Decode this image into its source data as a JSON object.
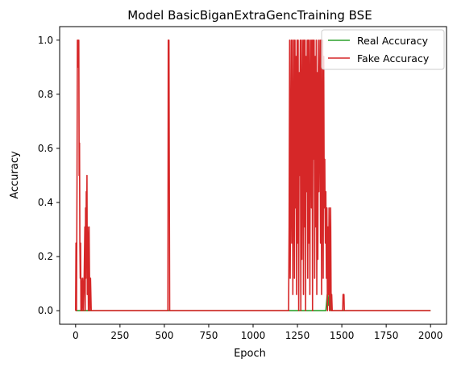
{
  "chart_data": {
    "type": "line",
    "title": "Model BasicBiganExtraGencTraining BSE",
    "xlabel": "Epoch",
    "ylabel": "Accuracy",
    "xlim": [
      -90,
      2090
    ],
    "ylim": [
      -0.05,
      1.05
    ],
    "xticks": [
      0,
      250,
      500,
      750,
      1000,
      1250,
      1500,
      1750,
      2000
    ],
    "yticks": [
      0.0,
      0.2,
      0.4,
      0.6,
      0.8,
      1.0
    ],
    "xtick_labels": [
      "0",
      "250",
      "500",
      "750",
      "1000",
      "1250",
      "1500",
      "1750",
      "2000"
    ],
    "ytick_labels": [
      "0.0",
      "0.2",
      "0.4",
      "0.6",
      "0.8",
      "1.0"
    ],
    "legend_position": "top-right",
    "grid": false,
    "series": [
      {
        "name": "Real Accuracy",
        "color": "#2ca02c",
        "points": [
          [
            0,
            0
          ],
          [
            1410,
            0
          ],
          [
            1418,
            0.06
          ],
          [
            1424,
            0.02
          ],
          [
            1428,
            0.06
          ],
          [
            1432,
            0
          ],
          [
            1436,
            0.06
          ],
          [
            1440,
            0
          ],
          [
            2000,
            0
          ]
        ]
      },
      {
        "name": "Fake Accuracy",
        "color": "#d62728",
        "points": [
          [
            0,
            0
          ],
          [
            2,
            0.25
          ],
          [
            5,
            0
          ],
          [
            8,
            0.5
          ],
          [
            10,
            1.0
          ],
          [
            12,
            0.9
          ],
          [
            14,
            1.0
          ],
          [
            16,
            0.94
          ],
          [
            18,
            1.0
          ],
          [
            20,
            0.5
          ],
          [
            22,
            0.62
          ],
          [
            24,
            0.25
          ],
          [
            26,
            0.12
          ],
          [
            28,
            0.25
          ],
          [
            30,
            0
          ],
          [
            32,
            0.12
          ],
          [
            36,
            0
          ],
          [
            40,
            0.12
          ],
          [
            44,
            0
          ],
          [
            48,
            0.12
          ],
          [
            52,
            0.31
          ],
          [
            54,
            0
          ],
          [
            56,
            0.38
          ],
          [
            58,
            0.12
          ],
          [
            60,
            0.44
          ],
          [
            62,
            0.25
          ],
          [
            64,
            0.5
          ],
          [
            66,
            0.06
          ],
          [
            68,
            0.31
          ],
          [
            70,
            0.2
          ],
          [
            72,
            0
          ],
          [
            76,
            0.31
          ],
          [
            80,
            0
          ],
          [
            84,
            0.12
          ],
          [
            88,
            0
          ],
          [
            520,
            0
          ],
          [
            522,
            1.0
          ],
          [
            526,
            1.0
          ],
          [
            530,
            0
          ],
          [
            1200,
            0
          ],
          [
            1203,
            0.31
          ],
          [
            1206,
            1.0
          ],
          [
            1209,
            0.12
          ],
          [
            1212,
            0.5
          ],
          [
            1215,
            1.0
          ],
          [
            1218,
            0.25
          ],
          [
            1221,
            1.0
          ],
          [
            1224,
            0.06
          ],
          [
            1227,
            0.62
          ],
          [
            1230,
            1.0
          ],
          [
            1233,
            0.12
          ],
          [
            1236,
            1.0
          ],
          [
            1239,
            0.38
          ],
          [
            1242,
            0.94
          ],
          [
            1245,
            0.06
          ],
          [
            1248,
            1.0
          ],
          [
            1251,
            0.25
          ],
          [
            1254,
            1.0
          ],
          [
            1257,
            0
          ],
          [
            1260,
            0.88
          ],
          [
            1263,
            0.5
          ],
          [
            1266,
            1.0
          ],
          [
            1269,
            0
          ],
          [
            1272,
            1.0
          ],
          [
            1275,
            0.19
          ],
          [
            1278,
            0.75
          ],
          [
            1281,
            1.0
          ],
          [
            1284,
            0.06
          ],
          [
            1287,
            1.0
          ],
          [
            1290,
            0.31
          ],
          [
            1293,
            1.0
          ],
          [
            1296,
            0
          ],
          [
            1299,
            0.94
          ],
          [
            1302,
            0.44
          ],
          [
            1305,
            1.0
          ],
          [
            1308,
            0.12
          ],
          [
            1311,
            1.0
          ],
          [
            1314,
            0.25
          ],
          [
            1317,
            1.0
          ],
          [
            1320,
            0.06
          ],
          [
            1323,
            0.81
          ],
          [
            1326,
            1.0
          ],
          [
            1329,
            0.38
          ],
          [
            1332,
            1.0
          ],
          [
            1335,
            0
          ],
          [
            1338,
            1.0
          ],
          [
            1341,
            0.56
          ],
          [
            1344,
            1.0
          ],
          [
            1347,
            0.12
          ],
          [
            1350,
            0.94
          ],
          [
            1353,
            0.31
          ],
          [
            1356,
            1.0
          ],
          [
            1359,
            0.06
          ],
          [
            1362,
            0.88
          ],
          [
            1365,
            0.19
          ],
          [
            1368,
            1.0
          ],
          [
            1371,
            0.44
          ],
          [
            1374,
            0.75
          ],
          [
            1377,
            1.0
          ],
          [
            1380,
            0.25
          ],
          [
            1383,
            1.0
          ],
          [
            1386,
            0.06
          ],
          [
            1389,
            0.62
          ],
          [
            1392,
            1.0
          ],
          [
            1395,
            0.12
          ],
          [
            1398,
            0.94
          ],
          [
            1401,
            0.38
          ],
          [
            1404,
            0.56
          ],
          [
            1407,
            0.25
          ],
          [
            1410,
            0.44
          ],
          [
            1413,
            0.12
          ],
          [
            1416,
            0.38
          ],
          [
            1419,
            0
          ],
          [
            1422,
            0.31
          ],
          [
            1425,
            0.06
          ],
          [
            1428,
            0.38
          ],
          [
            1431,
            0
          ],
          [
            1434,
            0.19
          ],
          [
            1437,
            0.38
          ],
          [
            1440,
            0
          ],
          [
            1443,
            0.06
          ],
          [
            1446,
            0
          ],
          [
            1505,
            0
          ],
          [
            1507,
            0.06
          ],
          [
            1512,
            0.06
          ],
          [
            1514,
            0
          ],
          [
            2000,
            0
          ]
        ]
      }
    ]
  }
}
